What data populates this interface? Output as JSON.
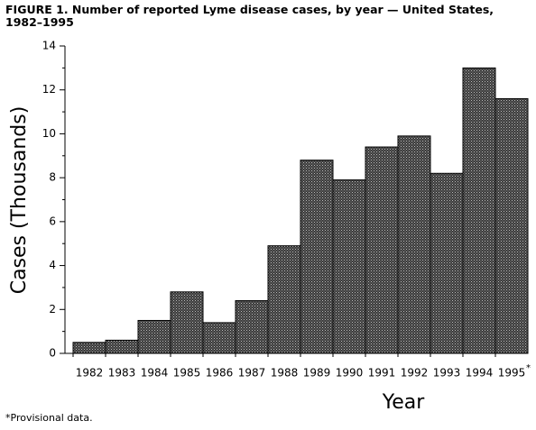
{
  "chart_data": {
    "type": "bar",
    "title": "FIGURE 1. Number of reported Lyme disease cases, by year — United States, 1982–1995",
    "x_label": "Year",
    "y_label": "Cases (Thousands)",
    "categories": [
      "1982",
      "1983",
      "1984",
      "1985",
      "1986",
      "1987",
      "1988",
      "1989",
      "1990",
      "1991",
      "1992",
      "1993",
      "1994",
      "1995"
    ],
    "values": [
      0.5,
      0.6,
      1.5,
      2.8,
      1.4,
      2.4,
      4.9,
      8.8,
      7.9,
      9.4,
      9.9,
      8.2,
      13.0,
      11.6
    ],
    "color": "#3a3a3a",
    "ylim": [
      0,
      14
    ],
    "yticks": [
      0,
      2,
      4,
      6,
      8,
      10,
      12,
      14
    ],
    "footnote_marker": "*",
    "footnote": "*Provisional data."
  }
}
